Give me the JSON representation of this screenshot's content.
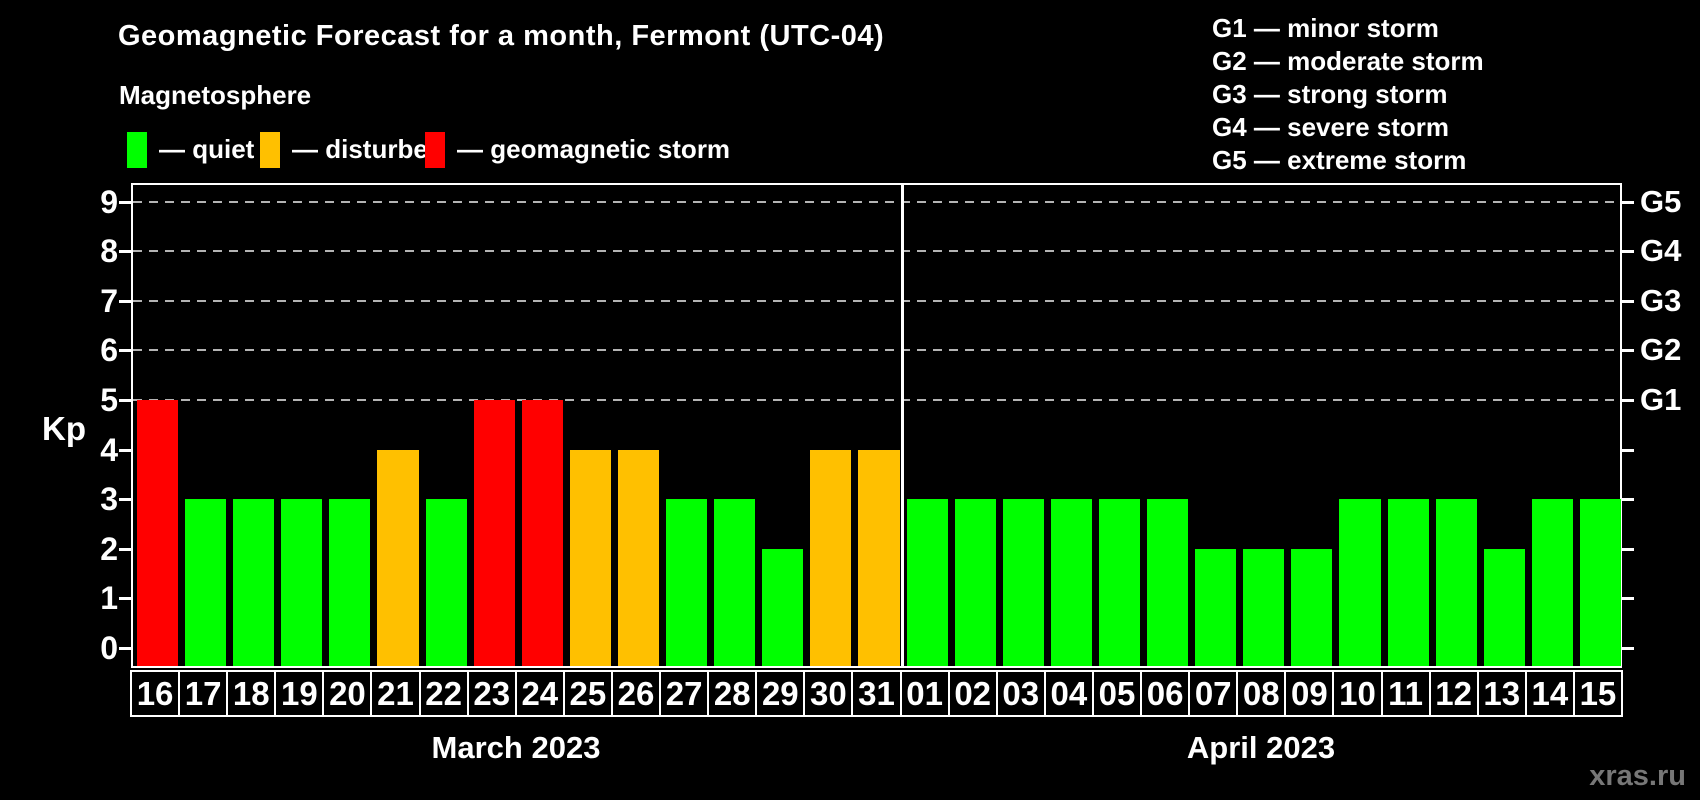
{
  "title": "Geomagnetic Forecast for a month, Fermont (UTC-04)",
  "subtitle": "Magnetosphere",
  "legend": {
    "items": [
      {
        "status": "quiet",
        "label": "— quiet",
        "color": "#00ff00"
      },
      {
        "status": "disturbed",
        "label": "— disturbed",
        "color": "#ffc000"
      },
      {
        "status": "storm",
        "label": "— geomagnetic storm",
        "color": "#ff0000"
      }
    ]
  },
  "g_scale_legend": [
    "G1 — minor storm",
    "G2 — moderate storm",
    "G3 — strong storm",
    "G4 — severe storm",
    "G5 — extreme storm"
  ],
  "watermark": "xras.ru",
  "chart_data": {
    "type": "bar",
    "title": "Geomagnetic Forecast for a month, Fermont (UTC-04)",
    "ylabel": "Kp",
    "ylim": [
      0,
      9
    ],
    "y_ticks": [
      0,
      1,
      2,
      3,
      4,
      5,
      6,
      7,
      8,
      9
    ],
    "gridlines_at": [
      5,
      6,
      7,
      8,
      9
    ],
    "grid": "dashed, only at storm levels G1-G5",
    "legend_position": "top",
    "right_axis_labels": [
      {
        "value": 5,
        "label": "G1"
      },
      {
        "value": 6,
        "label": "G2"
      },
      {
        "value": 7,
        "label": "G3"
      },
      {
        "value": 8,
        "label": "G4"
      },
      {
        "value": 9,
        "label": "G5"
      }
    ],
    "status_colors": {
      "quiet": "#00ff00",
      "disturbed": "#ffc000",
      "storm": "#ff0000"
    },
    "months": [
      {
        "label": "March 2023",
        "days": [
          "16",
          "17",
          "18",
          "19",
          "20",
          "21",
          "22",
          "23",
          "24",
          "25",
          "26",
          "27",
          "28",
          "29",
          "30",
          "31"
        ],
        "values": [
          5,
          3,
          3,
          3,
          3,
          4,
          3,
          5,
          5,
          4,
          4,
          3,
          3,
          2,
          4,
          4
        ],
        "statuses": [
          "storm",
          "quiet",
          "quiet",
          "quiet",
          "quiet",
          "disturbed",
          "quiet",
          "storm",
          "storm",
          "disturbed",
          "disturbed",
          "quiet",
          "quiet",
          "quiet",
          "disturbed",
          "disturbed"
        ]
      },
      {
        "label": "April 2023",
        "days": [
          "01",
          "02",
          "03",
          "04",
          "05",
          "06",
          "07",
          "08",
          "09",
          "10",
          "11",
          "12",
          "13",
          "14",
          "15"
        ],
        "values": [
          3,
          3,
          3,
          3,
          3,
          3,
          2,
          2,
          2,
          3,
          3,
          3,
          2,
          3,
          3
        ],
        "statuses": [
          "quiet",
          "quiet",
          "quiet",
          "quiet",
          "quiet",
          "quiet",
          "quiet",
          "quiet",
          "quiet",
          "quiet",
          "quiet",
          "quiet",
          "quiet",
          "quiet",
          "quiet"
        ]
      }
    ]
  }
}
